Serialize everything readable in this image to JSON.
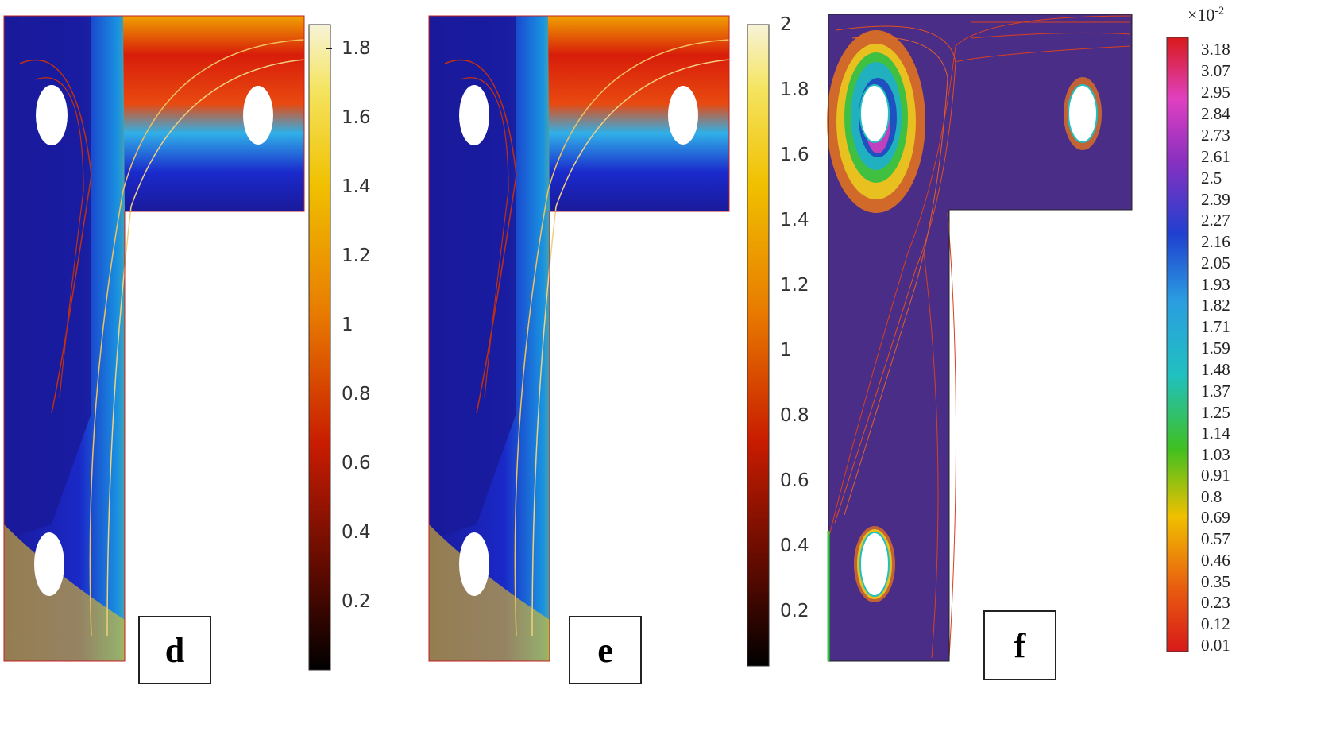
{
  "panels": [
    {
      "label": "d",
      "colorbar_ticks": [
        "1.8",
        "1.6",
        "1.4",
        "1.2",
        "1",
        "0.8",
        "0.6",
        "0.4",
        "0.2"
      ]
    },
    {
      "label": "e",
      "colorbar_ticks": [
        "2",
        "1.8",
        "1.6",
        "1.4",
        "1.2",
        "1",
        "0.8",
        "0.6",
        "0.4",
        "0.2"
      ]
    },
    {
      "label": "f",
      "colorbar_multiplier": "×10",
      "colorbar_exponent": "-2",
      "colorbar_ticks": [
        "3.18",
        "3.07",
        "2.95",
        "2.84",
        "2.73",
        "2.61",
        "2.5",
        "2.39",
        "2.27",
        "2.16",
        "2.05",
        "1.93",
        "1.82",
        "1.71",
        "1.59",
        "1.48",
        "1.37",
        "1.25",
        "1.14",
        "1.03",
        "0.91",
        "0.8",
        "0.69",
        "0.57",
        "0.46",
        "0.35",
        "0.23",
        "0.12",
        "0.01"
      ]
    }
  ],
  "colors": {
    "jet_low": "#1a1aa0",
    "jet_high": "#d81d0a",
    "background_f": "#4a2d86",
    "cylinder": "#ffffff"
  }
}
